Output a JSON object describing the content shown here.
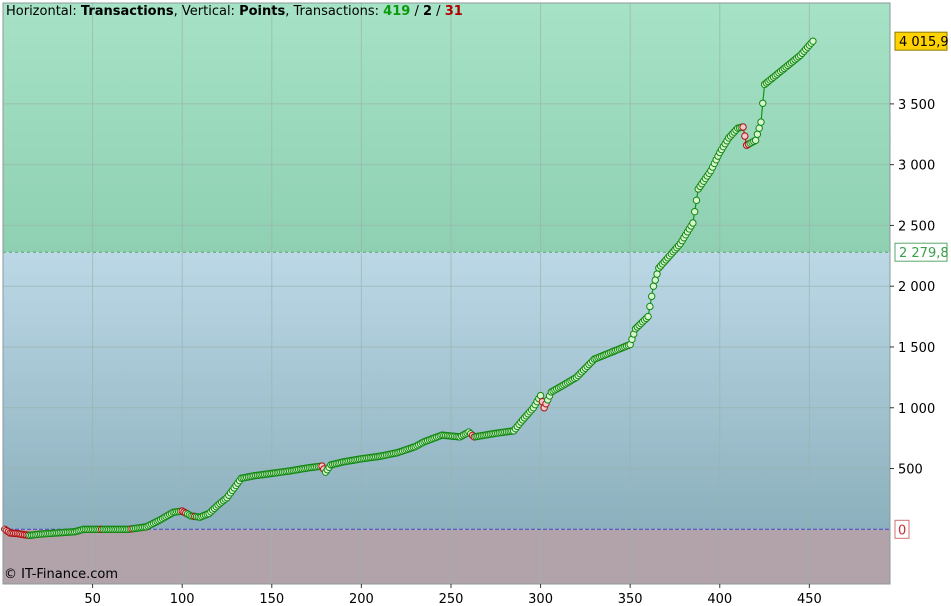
{
  "header": {
    "horizontal_label": "Horizontal:",
    "horizontal_value": "Transactions",
    "vertical_label": "Vertical:",
    "vertical_value": "Points",
    "transactions_label": "Transactions:",
    "count_positive": "419",
    "count_neutral": "2",
    "count_negative": "31",
    "sep": "/",
    "comma": ","
  },
  "copyright": "© IT-Finance.com",
  "colors": {
    "zone_top": "#a6e2c6",
    "zone_top_bottom": "#8fd0b2",
    "zone_mid_top": "#bcd8e6",
    "zone_mid_bottom": "#8cb0bd",
    "zone_low": "#b2a2aa",
    "line": "#119911",
    "loss_line": "#cc1111",
    "marker_fill": "#d8f5d0",
    "marker_stroke": "#118811",
    "loss_marker_fill": "#f2caca",
    "loss_marker_stroke": "#aa1111",
    "grid": "#9ab4ad",
    "zero_line": "#4444cc",
    "mean_line": "#5aa56a",
    "last_label_bg": "#ffd200"
  },
  "chart_data": {
    "type": "line",
    "xlabel": "",
    "ylabel": "",
    "xlim": [
      0,
      495
    ],
    "ylim": [
      -450,
      4330
    ],
    "x_ticks": [
      "50",
      "100",
      "150",
      "200",
      "250",
      "300",
      "350",
      "400",
      "450"
    ],
    "x_tick_values": [
      50,
      100,
      150,
      200,
      250,
      300,
      350,
      400,
      450
    ],
    "y_ticks": [
      "500",
      "1 000",
      "1 500",
      "2 000",
      "2 500",
      "3 000",
      "3 500"
    ],
    "y_tick_values": [
      500,
      1000,
      1500,
      2000,
      2500,
      3000,
      3500
    ],
    "grid": true,
    "last_value": 4015.9,
    "last_value_label": "4 015,9",
    "mean_value": 2279.8,
    "mean_value_label": "2 279,8",
    "zero_value": 0,
    "zero_label": "0",
    "total_transactions": 452,
    "anchors": [
      [
        1,
        0
      ],
      [
        4,
        -30
      ],
      [
        8,
        -35
      ],
      [
        12,
        -45
      ],
      [
        15,
        -50
      ],
      [
        20,
        -40
      ],
      [
        30,
        -30
      ],
      [
        40,
        -20
      ],
      [
        45,
        0
      ],
      [
        55,
        0
      ],
      [
        70,
        0
      ],
      [
        80,
        20
      ],
      [
        88,
        80
      ],
      [
        95,
        140
      ],
      [
        100,
        150
      ],
      [
        105,
        110
      ],
      [
        110,
        100
      ],
      [
        115,
        130
      ],
      [
        120,
        200
      ],
      [
        125,
        260
      ],
      [
        130,
        360
      ],
      [
        133,
        420
      ],
      [
        140,
        440
      ],
      [
        150,
        460
      ],
      [
        160,
        480
      ],
      [
        170,
        505
      ],
      [
        178,
        520
      ],
      [
        180,
        470
      ],
      [
        183,
        530
      ],
      [
        190,
        555
      ],
      [
        200,
        580
      ],
      [
        210,
        600
      ],
      [
        220,
        630
      ],
      [
        230,
        680
      ],
      [
        235,
        720
      ],
      [
        245,
        775
      ],
      [
        255,
        760
      ],
      [
        260,
        800
      ],
      [
        263,
        760
      ],
      [
        275,
        790
      ],
      [
        285,
        810
      ],
      [
        290,
        900
      ],
      [
        296,
        1000
      ],
      [
        300,
        1100
      ],
      [
        302,
        1000
      ],
      [
        306,
        1130
      ],
      [
        312,
        1180
      ],
      [
        320,
        1250
      ],
      [
        330,
        1400
      ],
      [
        340,
        1460
      ],
      [
        350,
        1520
      ],
      [
        353,
        1650
      ],
      [
        360,
        1750
      ],
      [
        363,
        2000
      ],
      [
        366,
        2150
      ],
      [
        372,
        2250
      ],
      [
        378,
        2350
      ],
      [
        385,
        2520
      ],
      [
        388,
        2800
      ],
      [
        395,
        2950
      ],
      [
        400,
        3100
      ],
      [
        405,
        3220
      ],
      [
        410,
        3300
      ],
      [
        413,
        3310
      ],
      [
        415,
        3160
      ],
      [
        420,
        3200
      ],
      [
        423,
        3350
      ],
      [
        425,
        3660
      ],
      [
        430,
        3720
      ],
      [
        435,
        3780
      ],
      [
        440,
        3840
      ],
      [
        445,
        3900
      ],
      [
        448,
        3950
      ],
      [
        452,
        4015.9
      ]
    ],
    "loss_indices": [
      1,
      2,
      3,
      4,
      5,
      6,
      7,
      8,
      9,
      10,
      11,
      12,
      13,
      14,
      55,
      72,
      100,
      101,
      102,
      107,
      178,
      179,
      262,
      263,
      301,
      302,
      303,
      413,
      414,
      415,
      416
    ]
  }
}
